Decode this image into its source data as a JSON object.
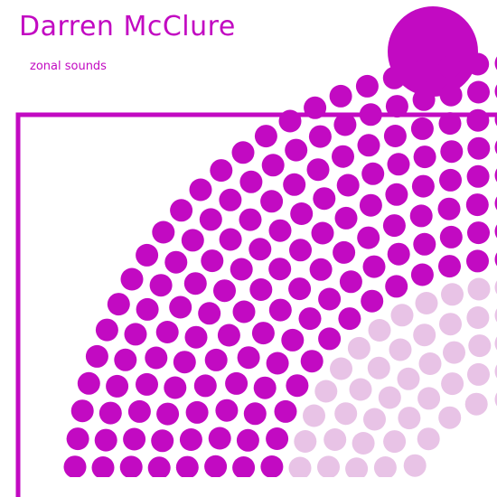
{
  "cover": {
    "artist": "Darren McClure",
    "album": "zonal sounds"
  },
  "colors": {
    "accent": "#c20ac2",
    "light": "#e8c3e6",
    "background": "#ffffff"
  },
  "artwork": {
    "dot_rings_dark": 8,
    "dot_rings_light": 5
  }
}
